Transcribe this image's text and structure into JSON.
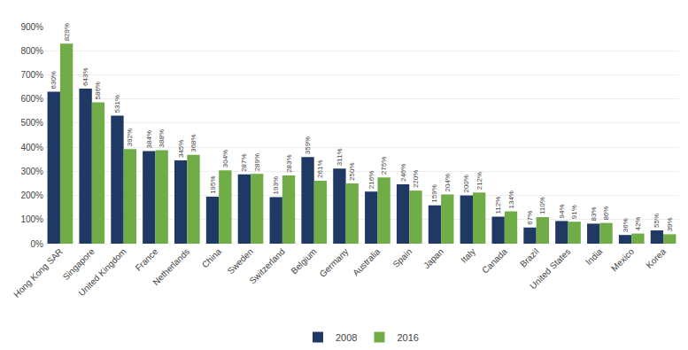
{
  "chart_data": {
    "type": "bar",
    "categories": [
      "Hong Kong SAR",
      "Singapore",
      "United Kingdom",
      "France",
      "Netherlands",
      "China",
      "Sweden",
      "Switzerland",
      "Belgium",
      "Germany",
      "Australia",
      "Spain",
      "Japan",
      "Italy",
      "Canada",
      "Brazil",
      "United States",
      "India",
      "Mexico",
      "Korea"
    ],
    "series": [
      {
        "name": "2008",
        "color": "#1f3864",
        "values": [
          630,
          643,
          531,
          384,
          345,
          195,
          287,
          193,
          359,
          311,
          216,
          246,
          159,
          200,
          112,
          67,
          94,
          83,
          36,
          55
        ],
        "value_labels": [
          "630%",
          "643%",
          "531%",
          "384%",
          "345%",
          "195%",
          "287%",
          "193%",
          "359%",
          "311%",
          "216%",
          "246%",
          "159%",
          "200%",
          "112%",
          "67%",
          "94%",
          "83%",
          "36%",
          "55%"
        ]
      },
      {
        "name": "2016",
        "color": "#70ad47",
        "values": [
          829,
          586,
          392,
          388,
          368,
          304,
          289,
          283,
          261,
          250,
          275,
          220,
          204,
          212,
          134,
          110,
          91,
          86,
          42,
          39
        ],
        "value_labels": [
          "829%",
          "586%",
          "392%",
          "388%",
          "368%",
          "304%",
          "289%",
          "283%",
          "261%",
          "250%",
          "275%",
          "220%",
          "204%",
          "212%",
          "134%",
          "110%",
          "91%",
          "86%",
          "42%",
          "39%"
        ]
      }
    ],
    "ylim": [
      0,
      900
    ],
    "yticks": [
      {
        "value": 0,
        "label": "0%"
      },
      {
        "value": 100,
        "label": "100%"
      },
      {
        "value": 200,
        "label": "200%"
      },
      {
        "value": 300,
        "label": "300%"
      },
      {
        "value": 400,
        "label": "400%"
      },
      {
        "value": 500,
        "label": "500%"
      },
      {
        "value": 600,
        "label": "600%"
      },
      {
        "value": 700,
        "label": "700%"
      },
      {
        "value": 800,
        "label": "800%"
      },
      {
        "value": 900,
        "label": "900%"
      }
    ],
    "grid": true,
    "legend": "bottom",
    "data_labels": true
  }
}
